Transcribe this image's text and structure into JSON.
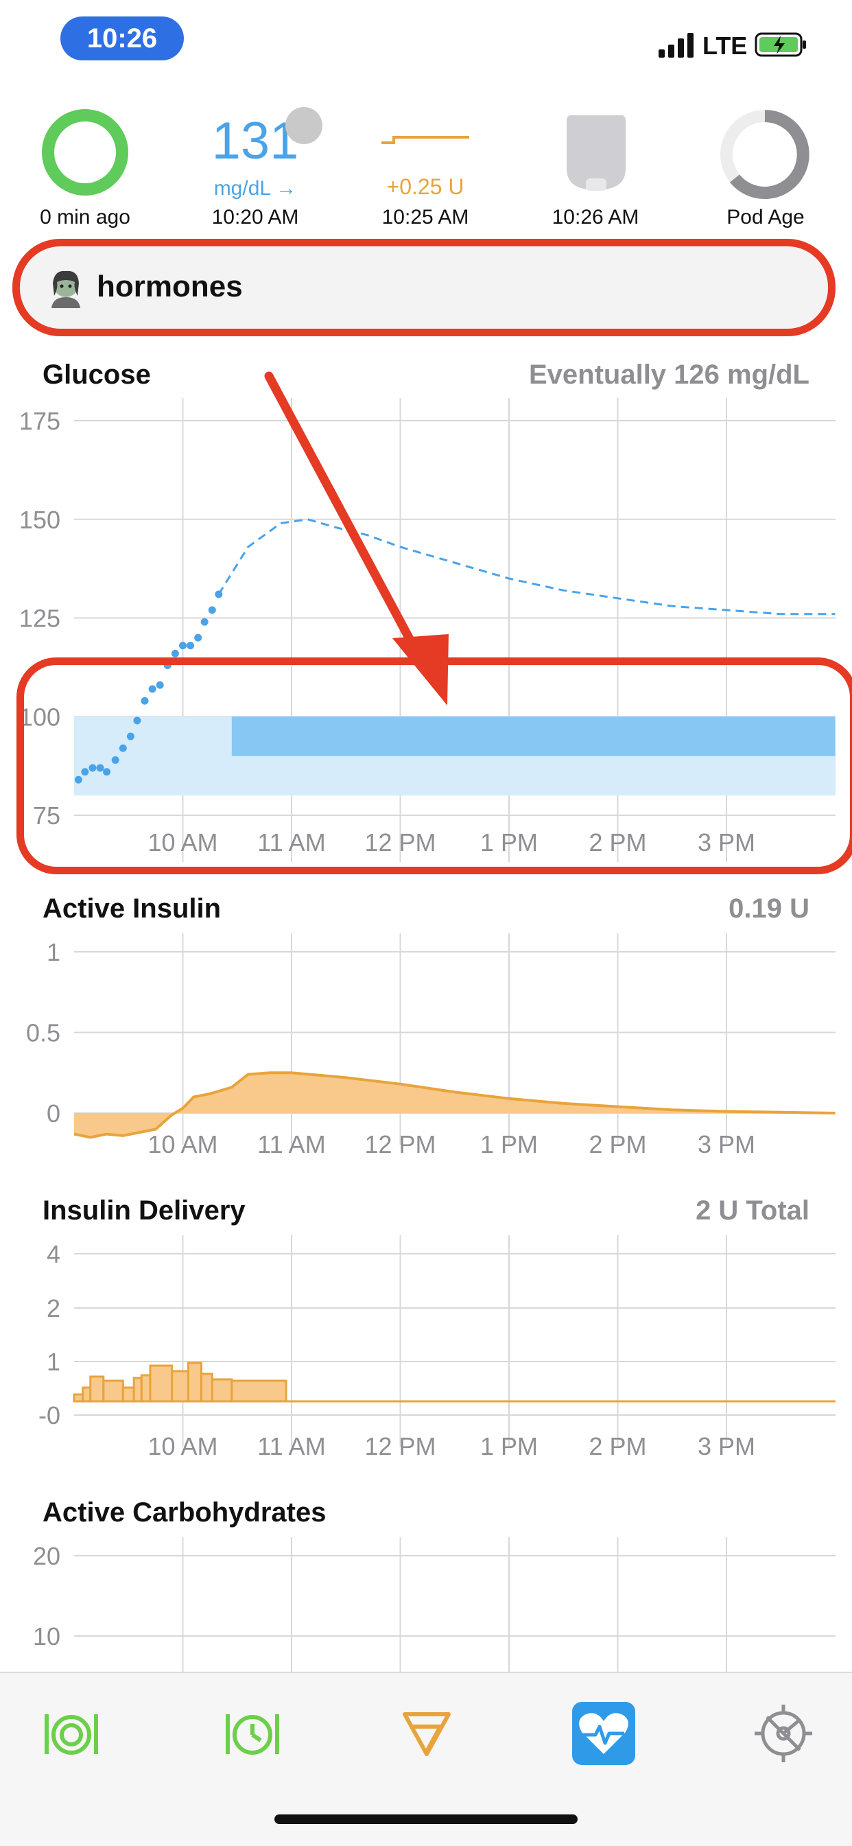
{
  "status_bar": {
    "time": "10:26",
    "network": "LTE",
    "icons": [
      "signal-bars-icon",
      "battery-charging-icon"
    ]
  },
  "hud": {
    "loop": {
      "last_run": "0 min ago",
      "status_color": "#5ecb5a"
    },
    "glucose": {
      "value": "131",
      "unit_trend": "mg/dL →",
      "time": "10:20 AM",
      "color": "#4aa3e8"
    },
    "basal": {
      "rate": "+0.25 U",
      "time": "10:25 AM",
      "color": "#e8a43c"
    },
    "pump": {
      "time": "10:26 AM",
      "icon": "pod-icon"
    },
    "pod_age": {
      "label": "Pod Age",
      "icon": "pod-age-ring-icon"
    }
  },
  "override": {
    "label": "hormones",
    "icon": "woman-zombie-emoji-icon"
  },
  "charts": {
    "glucose": {
      "title": "Glucose",
      "summary": "Eventually 126 mg/dL"
    },
    "active_insulin": {
      "title": "Active Insulin",
      "summary": "0.19 U"
    },
    "insulin_delivery": {
      "title": "Insulin Delivery",
      "summary": "2 U Total"
    },
    "active_carbs": {
      "title": "Active Carbohydrates"
    }
  },
  "chart_data": [
    {
      "type": "scatter",
      "title": "Glucose",
      "x_ticks": [
        "10 AM",
        "11 AM",
        "12 PM",
        "1 PM",
        "2 PM",
        "3 PM"
      ],
      "y_ticks": [
        "175",
        "150",
        "125",
        "100",
        "75"
      ],
      "ylim": [
        75,
        175
      ],
      "xlim_hours": [
        9.0,
        16.0
      ],
      "series": [
        {
          "kind": "points",
          "x": [
            9.04,
            9.1,
            9.17,
            9.24,
            9.3,
            9.38,
            9.45,
            9.52,
            9.58,
            9.65,
            9.72,
            9.79,
            9.86,
            9.93,
            10.0,
            10.07,
            10.14,
            10.2,
            10.27,
            10.33
          ],
          "y": [
            84,
            86,
            87,
            87,
            86,
            89,
            92,
            95,
            99,
            104,
            107,
            108,
            113,
            116,
            118,
            118,
            120,
            124,
            127,
            131
          ]
        },
        {
          "kind": "dashed-line",
          "x": [
            10.33,
            10.6,
            10.9,
            11.15,
            11.4,
            11.7,
            12.0,
            12.5,
            13.0,
            13.5,
            14.0,
            14.5,
            15.0,
            15.5,
            16.0
          ],
          "y": [
            131,
            143,
            149,
            150,
            148,
            146,
            143,
            139,
            135,
            132,
            130,
            128,
            127,
            126,
            126
          ]
        }
      ],
      "target_range": {
        "low": 80,
        "high": 100
      },
      "override_range": {
        "from": 10.45,
        "to": 16.0,
        "low": 90,
        "high": 100
      }
    },
    {
      "type": "area",
      "title": "Active Insulin",
      "x_ticks": [
        "10 AM",
        "11 AM",
        "12 PM",
        "1 PM",
        "2 PM",
        "3 PM"
      ],
      "y_ticks": [
        "1",
        "0.5",
        "0"
      ],
      "ylim": [
        -0.15,
        1.0
      ],
      "xlim_hours": [
        9.0,
        16.0
      ],
      "x": [
        9.0,
        9.15,
        9.3,
        9.45,
        9.6,
        9.75,
        9.9,
        10.0,
        10.1,
        10.25,
        10.45,
        10.6,
        10.8,
        11.0,
        11.5,
        12.0,
        12.5,
        13.0,
        13.5,
        14.0,
        14.5,
        15.0,
        15.5,
        16.0
      ],
      "y": [
        -0.13,
        -0.15,
        -0.13,
        -0.14,
        -0.12,
        -0.1,
        -0.01,
        0.03,
        0.1,
        0.12,
        0.16,
        0.24,
        0.25,
        0.25,
        0.22,
        0.18,
        0.13,
        0.09,
        0.06,
        0.04,
        0.02,
        0.01,
        0.005,
        0.0
      ]
    },
    {
      "type": "bar",
      "title": "Insulin Delivery",
      "x_ticks": [
        "10 AM",
        "11 AM",
        "12 PM",
        "1 PM",
        "2 PM",
        "3 PM"
      ],
      "y_ticks": [
        "4",
        "2",
        "1",
        "-0"
      ],
      "ylim": [
        0,
        4
      ],
      "xlim_hours": [
        9.0,
        16.0
      ],
      "bars": [
        {
          "from": 9.0,
          "to": 9.08,
          "value": 0.25
        },
        {
          "from": 9.08,
          "to": 9.15,
          "value": 0.5
        },
        {
          "from": 9.15,
          "to": 9.27,
          "value": 0.9
        },
        {
          "from": 9.27,
          "to": 9.45,
          "value": 0.75
        },
        {
          "from": 9.45,
          "to": 9.55,
          "value": 0.5
        },
        {
          "from": 9.55,
          "to": 9.62,
          "value": 0.85
        },
        {
          "from": 9.62,
          "to": 9.7,
          "value": 0.95
        },
        {
          "from": 9.7,
          "to": 9.9,
          "value": 1.3
        },
        {
          "from": 9.9,
          "to": 10.05,
          "value": 1.1
        },
        {
          "from": 10.05,
          "to": 10.17,
          "value": 1.4
        },
        {
          "from": 10.17,
          "to": 10.27,
          "value": 1.0
        },
        {
          "from": 10.27,
          "to": 10.45,
          "value": 0.8
        },
        {
          "from": 10.45,
          "to": 10.95,
          "value": 0.75
        }
      ],
      "basal_line_value": 0.0
    },
    {
      "type": "area",
      "title": "Active Carbohydrates",
      "y_ticks": [
        "20",
        "10"
      ],
      "ylim": [
        0,
        20
      ],
      "xlim_hours": [
        9.0,
        16.0
      ]
    }
  ],
  "tab_bar": {
    "items": [
      {
        "name": "carb-entry-icon",
        "color": "#6ccf4a"
      },
      {
        "name": "pre-meal-icon",
        "color": "#6ccf4a"
      },
      {
        "name": "bolus-icon",
        "color": "#e8a43c"
      },
      {
        "name": "workout-heart-icon",
        "color": "#2f9be8"
      },
      {
        "name": "settings-gear-icon",
        "color": "#8e8e93"
      }
    ]
  },
  "colors": {
    "glucose": "#4aa3e8",
    "insulin": "#e8a43c",
    "insulin_fill": "#f8c98a",
    "target_light": "#d6ecfb",
    "target_dark": "#86c7f4",
    "annotation": "#e53a23"
  }
}
